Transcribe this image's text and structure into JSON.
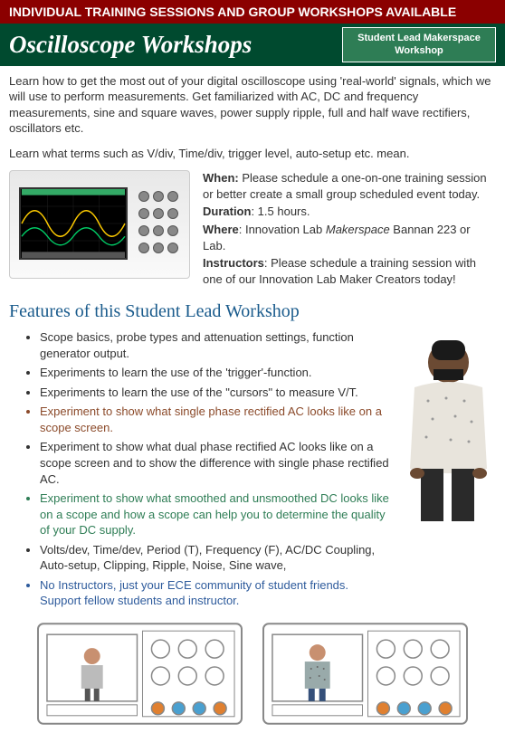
{
  "banner": "INDIVIDUAL TRAINING SESSIONS AND GROUP WORKSHOPS AVAILABLE",
  "title": "Oscilloscope Workshops",
  "badge_line1": "Student Lead Makerspace",
  "badge_line2": "Workshop",
  "intro1": "Learn how to get the most out of your digital oscilloscope using 'real-world' signals, which we will use to perform measurements. Get familiarized with AC, DC and frequency measurements, sine and square waves, power supply ripple, full and half wave rectifiers, oscillators etc.",
  "intro2": "Learn what terms such as V/div, Time/div, trigger level, auto-setup etc. mean.",
  "info": {
    "when_label": "When:",
    "when_text": " Please schedule a one-on-one training session or better create a small group scheduled event today.",
    "duration_label": "Duration",
    "duration_text": ": 1.5 hours.",
    "where_label": "Where",
    "where_text_pre": ": Innovation Lab ",
    "where_em": "Makerspace",
    "where_text_post": " Bannan 223 or Lab.",
    "instructors_label": "Instructors",
    "instructors_text": ": Please schedule a training session with one of our Innovation Lab Maker Creators today!"
  },
  "features_header": "Features of this Student Lead Workshop",
  "features": [
    {
      "text": "Scope basics, probe types and attenuation settings, function generator output.",
      "cls": ""
    },
    {
      "text": "Experiments to learn the use of the 'trigger'-function.",
      "cls": ""
    },
    {
      "text": "Experiments to learn the use of the \"cursors\" to measure V/T.",
      "cls": ""
    },
    {
      "text": "Experiment to show what single phase rectified AC looks like on a scope screen.",
      "cls": "brown"
    },
    {
      "text": "Experiment to show what dual phase rectified AC looks like on a scope screen and to show the difference with single phase rectified AC.",
      "cls": ""
    },
    {
      "text": "Experiment to show what smoothed and unsmoothed DC looks like on a scope and how a scope can help you to determine the quality of your DC supply.",
      "cls": "green"
    },
    {
      "text": "Volts/dev, Time/dev, Period (T), Frequency (F), AC/DC Coupling, Auto-setup, Clipping, Ripple, Noise, Sine wave,",
      "cls": ""
    },
    {
      "text": "No Instructors, just your ECE community of student friends. Support fellow students and instructor.",
      "cls": "blue"
    }
  ],
  "colors": {
    "banner_bg": "#8b0000",
    "titlebar_bg": "#004a2f",
    "badge_bg": "#2e7d55",
    "header_blue": "#1a5b8c",
    "knob_orange": "#e08030",
    "knob_blue": "#4aa0d0"
  }
}
